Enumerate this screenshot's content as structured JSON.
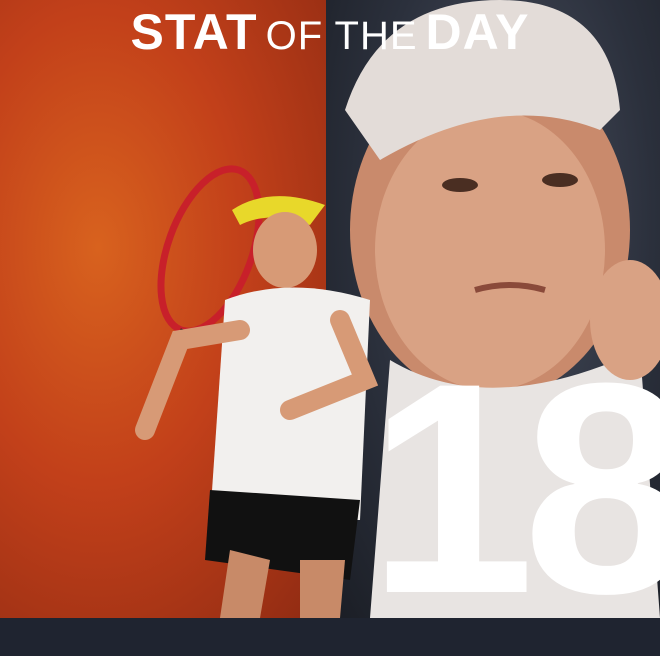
{
  "title": {
    "part1": "STAT",
    "part2": "OF THE",
    "part3": "DAY"
  },
  "stat_value": "18",
  "colors": {
    "left_background": "#c2401a",
    "right_background": "#2b303c",
    "text": "#ffffff"
  }
}
